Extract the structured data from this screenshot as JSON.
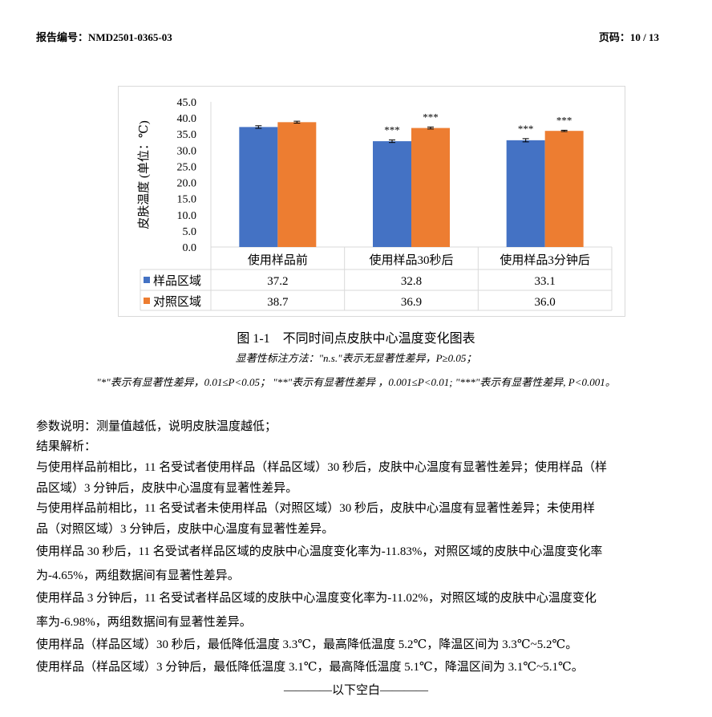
{
  "header": {
    "report_no": "报告编号：NMD2501-0365-03",
    "page": "页码：10 / 13"
  },
  "chart_data": {
    "type": "bar",
    "ylabel": "皮肤温度 (单位：℃)",
    "ylim": [
      0,
      45
    ],
    "yticks": [
      "0.0",
      "5.0",
      "10.0",
      "15.0",
      "20.0",
      "25.0",
      "30.0",
      "35.0",
      "40.0",
      "45.0"
    ],
    "categories": [
      "使用样品前",
      "使用样品30秒后",
      "使用样品3分钟后"
    ],
    "series": [
      {
        "name": "样品区域",
        "values": [
          37.2,
          32.8,
          33.1
        ],
        "labels": [
          "37.2",
          "32.8",
          "33.1"
        ],
        "error": [
          0.4,
          0.4,
          0.5
        ],
        "significance": [
          "",
          "***",
          "***"
        ],
        "color": "#4472c4"
      },
      {
        "name": "对照区域",
        "values": [
          38.7,
          36.9,
          36.0
        ],
        "labels": [
          "38.7",
          "36.9",
          "36.0"
        ],
        "error": [
          0.3,
          0.3,
          0.2
        ],
        "significance": [
          "",
          "***",
          "***"
        ],
        "color": "#ed7d31"
      }
    ],
    "legend": "data-table",
    "grid": false
  },
  "caption": {
    "title": "图 1-1　不同时间点皮肤中心温度变化图表",
    "note1": "显著性标注方法：\"n.s.\"表示无显著性差异，P≥0.05；",
    "note2": "\"*\"表示有显著性差异，0.01≤P<0.05；  \"**\"表示有显著性差异 ，0.001≤P<0.01; \"***\"表示有显著性差异, P<0.001。"
  },
  "body": [
    "参数说明：测量值越低，说明皮肤温度越低；",
    "结果解析：",
    "与使用样品前相比，11 名受试者使用样品（样品区域）30 秒后，皮肤中心温度有显著性差异；使用样品（样",
    "品区域）3 分钟后，皮肤中心温度有显著性差异。",
    "与使用样品前相比，11 名受试者未使用样品（对照区域）30 秒后，皮肤中心温度有显著性差异；未使用样",
    "品（对照区域）3 分钟后，皮肤中心温度有显著性差异。",
    "使用样品 30 秒后，11 名受试者样品区域的皮肤中心温度变化率为-11.83%，对照区域的皮肤中心温度变化率",
    "为-4.65%，两组数据间有显著性差异。",
    "使用样品 3 分钟后，11 名受试者样品区域的皮肤中心温度变化率为-11.02%，对照区域的皮肤中心温度变化",
    "率为-6.98%，两组数据间有显著性差异。",
    "使用样品（样品区域）30 秒后，最低降低温度 3.3℃，最高降低温度 5.2℃，降温区间为 3.3℃~5.2℃。",
    "使用样品（样品区域）3 分钟后，最低降低温度 3.1℃，最高降低温度 5.1℃，降温区间为 3.1℃~5.1℃。"
  ],
  "end_mark": "————以下空白————"
}
